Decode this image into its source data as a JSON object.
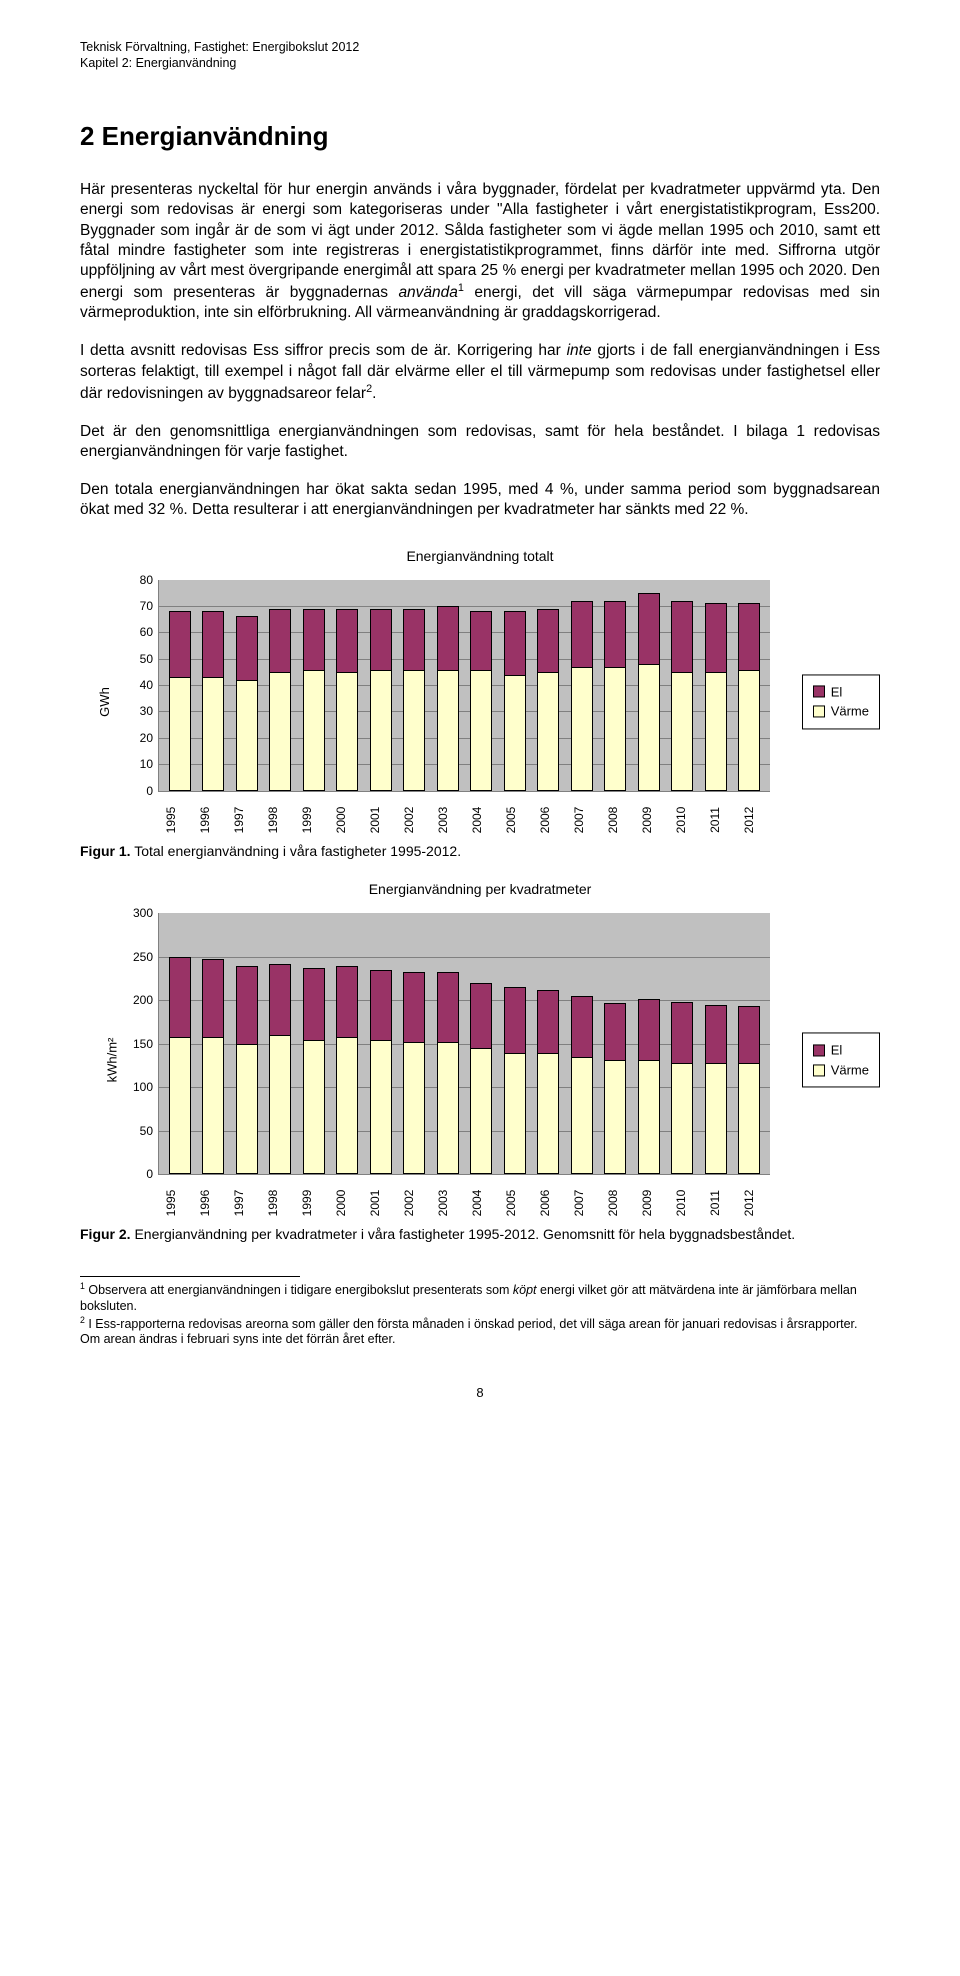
{
  "header": {
    "line1": "Teknisk Förvaltning, Fastighet: Energibokslut 2012",
    "line2": "Kapitel 2: Energianvändning"
  },
  "heading": "2  Energianvändning",
  "paragraphs": {
    "p1a": "Här presenteras nyckeltal för hur energin används i våra byggnader, fördelat per kvadratmeter uppvärmd yta. Den energi som redovisas är energi som kategoriseras under \"Alla fastigheter i vårt energistatistikprogram, Ess200. Byggnader som ingår är de som vi ägt under 2012. Sålda fastigheter som vi ägde mellan 1995 och 2010, samt ett fåtal mindre fastigheter som inte registreras i energistatistikprogrammet, finns därför inte med. Siffrorna utgör uppföljning av vårt mest övergripande energimål att spara 25 % energi per kvadratmeter mellan 1995 och 2020. Den energi som presenteras är byggnadernas ",
    "p1b": " energi, det vill säga värmepumpar redovisas med sin värmeproduktion, inte sin elförbrukning. All värmeanvändning är graddagskorrigerad.",
    "p1_em": "använda",
    "p1_sup": "1",
    "p2a": "I detta avsnitt redovisas Ess siffror precis som de är. Korrigering har ",
    "p2_em": "inte",
    "p2b": " gjorts i de fall energianvändningen i Ess sorteras felaktigt, till exempel i något fall där elvärme eller el till värmepump som redovisas under fastighetsel eller där redovisningen av byggnadsareor felar",
    "p2_sup": "2",
    "p2c": ".",
    "p3": "Det är den genomsnittliga energianvändningen som redovisas, samt för hela beståndet. I bilaga 1 redovisas energianvändningen för varje fastighet.",
    "p4": "Den totala energianvändningen har ökat sakta sedan 1995, med 4 %, under samma period som byggnadsarean ökat med 32 %. Detta resulterar i att energianvändningen per kvadratmeter har sänkts med 22 %."
  },
  "chart1": {
    "title": "Energianvändning totalt",
    "ylabel": "GWh",
    "ymax": 80,
    "ytick_step": 10,
    "plot_bg": "#c0c0c0",
    "grid_color": "#808080",
    "series": [
      {
        "name": "El",
        "color": "#993366"
      },
      {
        "name": "Värme",
        "color": "#ffffcc"
      }
    ],
    "categories": [
      "1995",
      "1996",
      "1997",
      "1998",
      "1999",
      "2000",
      "2001",
      "2002",
      "2003",
      "2004",
      "2005",
      "2006",
      "2007",
      "2008",
      "2009",
      "2010",
      "2011",
      "2012"
    ],
    "varme": [
      43,
      43,
      42,
      45,
      46,
      45,
      46,
      46,
      46,
      46,
      44,
      45,
      47,
      47,
      48,
      45,
      45,
      46
    ],
    "el": [
      25,
      25,
      24,
      24,
      23,
      24,
      23,
      23,
      24,
      22,
      24,
      24,
      25,
      25,
      27,
      27,
      26,
      25
    ]
  },
  "fig1": {
    "label": "Figur 1.",
    "text": " Total energianvändning i våra fastigheter 1995-2012."
  },
  "chart2": {
    "title": "Energianvändning per kvadratmeter",
    "ylabel": "kWh/m²",
    "ymax": 300,
    "ytick_step": 50,
    "plot_bg": "#c0c0c0",
    "grid_color": "#808080",
    "series": [
      {
        "name": "El",
        "color": "#993366"
      },
      {
        "name": "Värme",
        "color": "#ffffcc"
      }
    ],
    "categories": [
      "1995",
      "1996",
      "1997",
      "1998",
      "1999",
      "2000",
      "2001",
      "2002",
      "2003",
      "2004",
      "2005",
      "2006",
      "2007",
      "2008",
      "2009",
      "2010",
      "2011",
      "2012"
    ],
    "varme": [
      158,
      158,
      150,
      160,
      155,
      158,
      155,
      152,
      152,
      145,
      140,
      140,
      135,
      132,
      132,
      128,
      128,
      128
    ],
    "el": [
      92,
      90,
      90,
      82,
      82,
      82,
      80,
      80,
      80,
      75,
      75,
      72,
      70,
      65,
      70,
      70,
      67,
      65
    ]
  },
  "fig2": {
    "label": "Figur 2.",
    "text": " Energianvändning per kvadratmeter i våra fastigheter 1995-2012. Genomsnitt för hela byggnadsbeståndet."
  },
  "footnotes": {
    "f1_sup": "1",
    "f1a": " Observera att energianvändningen i tidigare energibokslut presenterats som ",
    "f1_em": "köpt",
    "f1b": " energi vilket gör att mätvärdena inte är jämförbara mellan boksluten.",
    "f2_sup": "2",
    "f2": " I Ess-rapporterna redovisas areorna som gäller den första månaden i önskad period, det vill säga arean för januari redovisas i årsrapporter. Om arean ändras i februari syns inte det förrän året efter."
  },
  "page": "8"
}
